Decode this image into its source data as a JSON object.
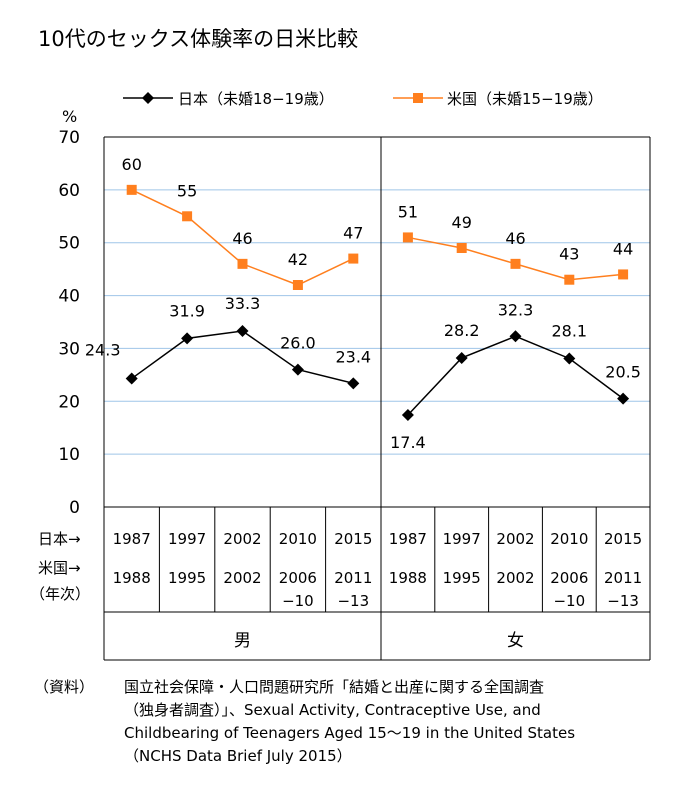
{
  "chart_data": {
    "type": "line",
    "title": "10代のセックス体験率の日米比較",
    "ylabel": "%",
    "ylim": [
      0,
      70
    ],
    "yticks": [
      0,
      10,
      20,
      30,
      40,
      50,
      60,
      70
    ],
    "grid": true,
    "legend_position": "top",
    "row_labels": [
      "日本→",
      "米国→",
      "（年次）"
    ],
    "panels": [
      {
        "name": "男",
        "categories_japan": [
          "1987",
          "1997",
          "2002",
          "2010",
          "2015"
        ],
        "categories_us": [
          "1988",
          "1995",
          "2002",
          "2006\n−10",
          "2011\n−13"
        ],
        "series": [
          {
            "name": "日本（未婚18−19歳）",
            "color": "#000000",
            "marker": "diamond",
            "values": [
              24.3,
              31.9,
              33.3,
              26.0,
              23.4
            ],
            "labels": [
              "24.3",
              "31.9",
              "33.3",
              "26.0",
              "23.4"
            ]
          },
          {
            "name": "米国（未婚15−19歳）",
            "color": "#ff7f1e",
            "marker": "square",
            "values": [
              60,
              55,
              46,
              42,
              47
            ],
            "labels": [
              "60",
              "55",
              "46",
              "42",
              "47"
            ]
          }
        ]
      },
      {
        "name": "女",
        "categories_japan": [
          "1987",
          "1997",
          "2002",
          "2010",
          "2015"
        ],
        "categories_us": [
          "1988",
          "1995",
          "2002",
          "2006\n−10",
          "2011\n−13"
        ],
        "series": [
          {
            "name": "日本（未婚18−19歳）",
            "color": "#000000",
            "marker": "diamond",
            "values": [
              17.4,
              28.2,
              32.3,
              28.1,
              20.5
            ],
            "labels": [
              "17.4",
              "28.2",
              "32.3",
              "28.1",
              "20.5"
            ]
          },
          {
            "name": "米国（未婚15−19歳）",
            "color": "#ff7f1e",
            "marker": "square",
            "values": [
              51,
              49,
              46,
              43,
              44
            ],
            "labels": [
              "51",
              "49",
              "46",
              "43",
              "44"
            ]
          }
        ]
      }
    ]
  },
  "source": {
    "label": "（資料）",
    "lines": [
      "国立社会保障・人口問題研究所「結婚と出産に関する全国調査",
      "（独身者調査）」、Sexual Activity, Contraceptive Use, and",
      "Childbearing of Teenagers Aged 15〜19 in the United States",
      "（NCHS Data Brief July 2015）"
    ]
  },
  "colors": {
    "grid": "#9fc5e8",
    "japan": "#000000",
    "us": "#ff7f1e"
  }
}
